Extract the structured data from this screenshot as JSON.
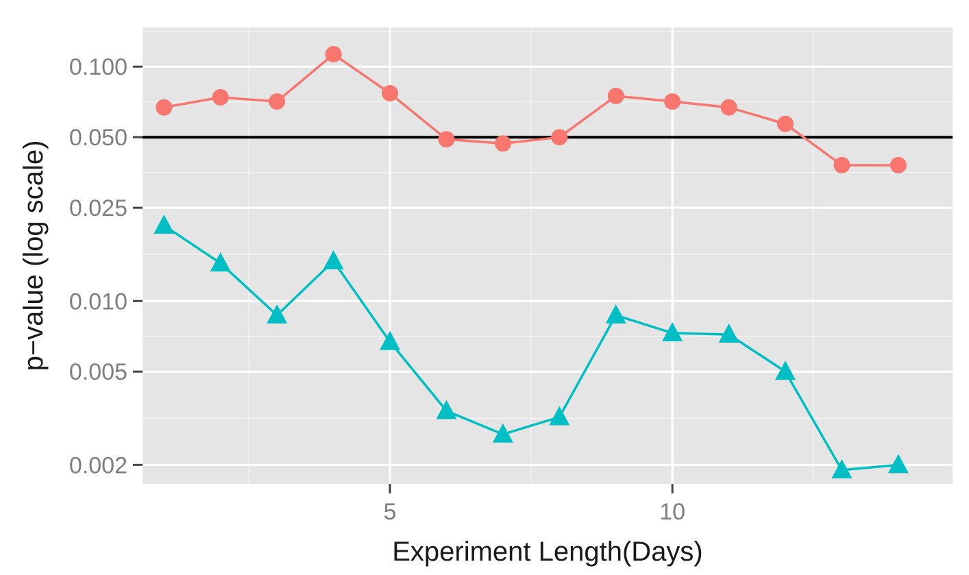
{
  "chart_data": {
    "type": "line",
    "title": "",
    "xlabel": "Experiment Length(Days)",
    "ylabel": "p−value (log scale)",
    "y_scale": "log",
    "xlim": [
      0.62,
      14.96
    ],
    "ylim": [
      0.00166,
      0.147
    ],
    "x_ticks": [
      5,
      10
    ],
    "x_tick_labels": [
      "5",
      "10"
    ],
    "y_ticks": [
      0.002,
      0.005,
      0.01,
      0.025,
      0.05,
      0.1
    ],
    "y_tick_labels": [
      "0.002",
      "0.005",
      "0.010",
      "0.025",
      "0.050",
      "0.100"
    ],
    "grid": true,
    "legend": "none",
    "reference_line": {
      "y": 0.05,
      "color": "#000000"
    },
    "x": [
      1,
      2,
      3,
      4,
      5,
      6,
      7,
      8,
      9,
      10,
      11,
      12,
      13,
      14
    ],
    "series": [
      {
        "marker": "circle",
        "color": "#F8766D",
        "values": [
          0.067,
          0.074,
          0.071,
          0.113,
          0.077,
          0.049,
          0.047,
          0.05,
          0.075,
          0.071,
          0.067,
          0.057,
          0.038,
          0.038
        ]
      },
      {
        "marker": "triangle",
        "color": "#00BFC4",
        "values": [
          0.021,
          0.0145,
          0.0087,
          0.0148,
          0.0067,
          0.0034,
          0.0027,
          0.0032,
          0.0087,
          0.0073,
          0.0072,
          0.005,
          0.0019,
          0.002
        ]
      }
    ]
  }
}
